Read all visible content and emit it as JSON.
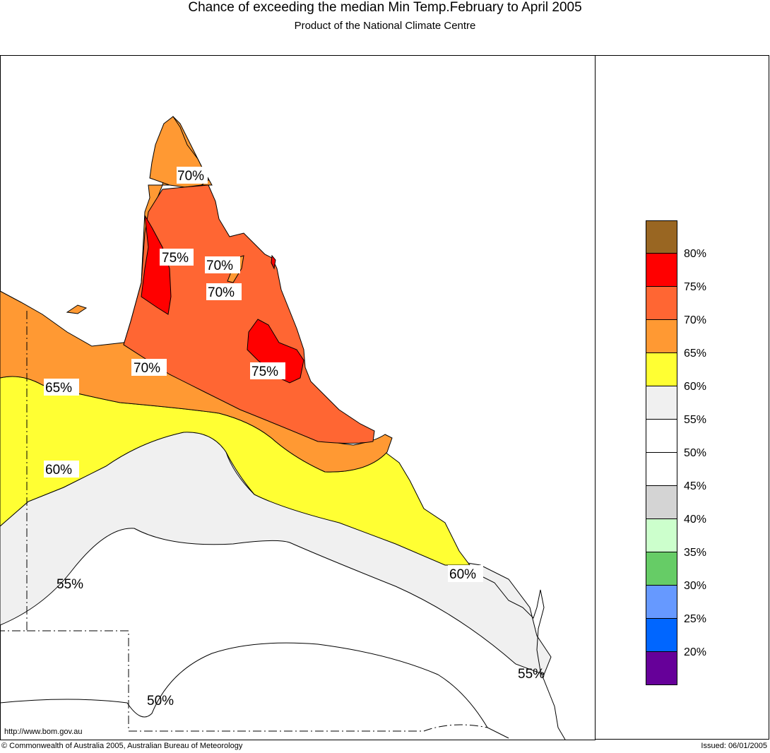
{
  "header": {
    "title": "Chance of exceeding the median Min Temp.February to April 2005",
    "subtitle": "Product of the National Climate Centre"
  },
  "map": {
    "contour_labels": [
      "70%",
      "75%",
      "70%",
      "70%",
      "70%",
      "75%",
      "65%",
      "60%",
      "55%",
      "60%",
      "55%",
      "50%"
    ],
    "fill_colors": {
      "p75_80": "#ff0000",
      "p70_75": "#ff6633",
      "p65_70": "#ff9933",
      "p60_65": "#ffff33",
      "p55_60": "#f0f0f0",
      "p50_55": "#ffffff"
    }
  },
  "legend": {
    "items": [
      {
        "color": "#996622"
      },
      {
        "color": "#ff0000",
        "label": "80%"
      },
      {
        "color": "#ff6633",
        "label": "75%"
      },
      {
        "color": "#ff9933",
        "label": "70%"
      },
      {
        "color": "#ffff33",
        "label": "65%"
      },
      {
        "color": "#f0f0f0",
        "label": "60%"
      },
      {
        "color": "#ffffff",
        "label": "55%"
      },
      {
        "color": "#ffffff",
        "label": "50%"
      },
      {
        "color": "#d4d4d4",
        "label": "45%"
      },
      {
        "color": "#ccffcc",
        "label": "40%"
      },
      {
        "color": "#66cc66",
        "label": "35%"
      },
      {
        "color": "#6699ff",
        "label": "30%"
      },
      {
        "color": "#0066ff",
        "label": "25%"
      },
      {
        "color": "#660099",
        "label": "20%"
      }
    ]
  },
  "footer": {
    "url": "http://www.bom.gov.au",
    "copyright": "© Commonwealth of Australia 2005, Australian Bureau of Meteorology",
    "issued": "Issued: 06/01/2005"
  }
}
